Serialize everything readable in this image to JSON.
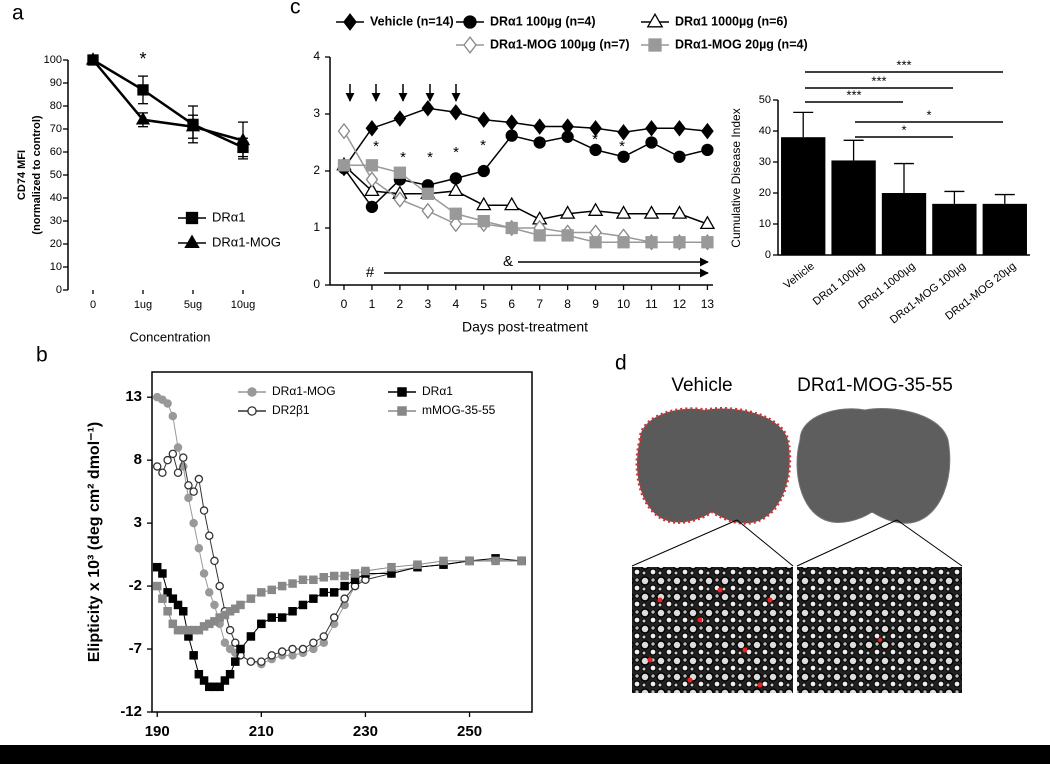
{
  "panel_labels": [
    "a",
    "c",
    "b",
    "d"
  ],
  "chart_data": [
    {
      "type": "line",
      "ylabel": [
        "CD74 MFI",
        "(normalized to control)"
      ],
      "xlabel": "Concentration",
      "categories": [
        "0",
        "1ug",
        "5ug",
        "10ug"
      ],
      "ylim": [
        0,
        100
      ],
      "yticks": [
        0,
        10,
        20,
        30,
        40,
        50,
        60,
        70,
        80,
        90,
        100
      ],
      "series": [
        {
          "name": "DRα1",
          "color": "#000000",
          "marker": "square",
          "filled": true,
          "values": [
            100,
            87,
            72,
            62
          ],
          "errors": [
            1,
            6,
            8,
            4
          ]
        },
        {
          "name": "DRα1-MOG",
          "color": "#000000",
          "marker": "triangle",
          "filled": true,
          "values": [
            100,
            74,
            71,
            65
          ],
          "errors": [
            1,
            3,
            5,
            8
          ]
        }
      ],
      "annotations": [
        "*"
      ]
    },
    {
      "type": "line",
      "xlabel": "Days post-treatment",
      "x": [
        0,
        1,
        2,
        3,
        4,
        5,
        6,
        7,
        8,
        9,
        10,
        11,
        12,
        13
      ],
      "xlim": [
        -0.5,
        13.2
      ],
      "xticks": [
        0,
        1,
        2,
        3,
        4,
        5,
        6,
        7,
        8,
        9,
        10,
        11,
        12,
        13
      ],
      "ylim": [
        0,
        4
      ],
      "yticks": [
        0,
        1,
        2,
        3,
        4
      ],
      "series": [
        {
          "name": "Vehicle (n=14)",
          "color": "#000000",
          "marker": "diamond",
          "filled": true,
          "values": [
            2.05,
            2.75,
            2.92,
            3.1,
            3.03,
            2.9,
            2.85,
            2.78,
            2.78,
            2.75,
            2.68,
            2.75,
            2.75,
            2.7
          ]
        },
        {
          "name": "DRα1 100µg (n=4)",
          "color": "#000000",
          "marker": "circle",
          "filled": true,
          "values": [
            2.05,
            1.37,
            1.85,
            1.75,
            1.87,
            2.0,
            2.62,
            2.5,
            2.6,
            2.37,
            2.25,
            2.5,
            2.25,
            2.37
          ]
        },
        {
          "name": "DRα1 1000µg (n=6)",
          "color": "#000000",
          "marker": "triangle",
          "filled": false,
          "values": [
            2.1,
            1.65,
            1.6,
            1.6,
            1.65,
            1.4,
            1.4,
            1.15,
            1.25,
            1.3,
            1.25,
            1.25,
            1.25,
            1.07
          ]
        },
        {
          "name": "DRα1-MOG 100µg (n=7)",
          "color": "#999999",
          "marker": "diamond",
          "filled": false,
          "values": [
            2.7,
            1.85,
            1.5,
            1.3,
            1.07,
            1.07,
            1.0,
            1.0,
            0.92,
            0.92,
            0.85,
            0.75,
            0.75,
            0.75
          ]
        },
        {
          "name": "DRα1-MOG 20µg (n=4)",
          "color": "#999999",
          "marker": "square",
          "filled": true,
          "values": [
            2.1,
            2.1,
            1.97,
            1.6,
            1.25,
            1.12,
            1.0,
            0.87,
            0.87,
            0.75,
            0.75,
            0.75,
            0.75,
            0.75
          ]
        }
      ],
      "annotations": [
        "*",
        "*",
        "*",
        "*",
        "*",
        "*",
        "*",
        "#",
        "&"
      ]
    },
    {
      "type": "bar",
      "ylabel": "Cumulative Disease Index",
      "categories": [
        "Vehicle",
        "DRα1 100µg",
        "DRα1 1000µg",
        "DRα1-MOG 100µg",
        "DRα1-MOG 20µg"
      ],
      "values": [
        38,
        30.5,
        20,
        16.5,
        16.5
      ],
      "errors": [
        8,
        6.5,
        9.5,
        4,
        3
      ],
      "color": "#000000",
      "ylim": [
        0,
        50
      ],
      "yticks": [
        0,
        10,
        20,
        30,
        40,
        50
      ],
      "annotations": [
        "***",
        "***",
        "***",
        "*",
        "*"
      ]
    },
    {
      "type": "line",
      "ylabel": "Elipticity x 10³ (deg cm² dmol⁻¹)",
      "x": [
        190,
        191,
        192,
        193,
        194,
        195,
        196,
        197,
        198,
        199,
        200,
        201,
        202,
        203,
        204,
        205,
        206,
        208,
        210,
        212,
        214,
        216,
        218,
        220,
        222,
        224,
        226,
        228,
        230,
        235,
        240,
        245,
        250,
        255,
        260
      ],
      "xlim": [
        189,
        262
      ],
      "xticks": [
        190,
        210,
        230,
        250
      ],
      "ylim": [
        -12,
        15
      ],
      "yticks": [
        -12,
        -7,
        -2,
        3,
        8,
        13
      ],
      "series": [
        {
          "name": "DRα1-MOG",
          "color": "#999999",
          "marker": "circle",
          "filled": true,
          "values": [
            13,
            12.8,
            12.5,
            11.5,
            9,
            7.5,
            5,
            3,
            1,
            -1,
            -2.5,
            -3.5,
            -5,
            -6.5,
            -7,
            -7.3,
            -7.5,
            -8,
            -8.2,
            -7.8,
            -7.5,
            -7.5,
            -7.3,
            -7,
            -6.5,
            -5,
            -3.5,
            -2,
            -1.2,
            -0.8,
            -0.5,
            -0.3,
            0,
            0,
            0
          ]
        },
        {
          "name": "DR2β1",
          "color": "#333333",
          "marker": "circle",
          "filled": false,
          "values": [
            7.5,
            7,
            8,
            8.5,
            7,
            8.2,
            6,
            5.5,
            6.5,
            4,
            2,
            0,
            -2,
            -4,
            -5.5,
            -6.5,
            -7.5,
            -8,
            -8,
            -7.5,
            -7.2,
            -7,
            -7,
            -6.5,
            -6,
            -4.5,
            -3,
            -2,
            -1.5,
            -1,
            -0.5,
            -0.3,
            0,
            0,
            0
          ]
        },
        {
          "name": "DRα1",
          "color": "#000000",
          "marker": "square",
          "filled": true,
          "values": [
            -0.5,
            -1,
            -2.5,
            -3,
            -3.5,
            -4,
            -6,
            -7.5,
            -9,
            -9.5,
            -10,
            -10,
            -10,
            -9.5,
            -9,
            -8,
            -7,
            -6,
            -5,
            -4.5,
            -4.5,
            -4,
            -3.5,
            -3,
            -2.5,
            -2.5,
            -2,
            -1.5,
            -1,
            -1,
            -0.5,
            -0.3,
            0,
            0.2,
            0
          ]
        },
        {
          "name": "mMOG-35-55",
          "color": "#888888",
          "marker": "square",
          "filled": true,
          "values": [
            -2,
            -3,
            -4,
            -5,
            -5.5,
            -5.5,
            -5.5,
            -5.5,
            -5.5,
            -5.2,
            -5,
            -4.8,
            -4.5,
            -4.3,
            -4,
            -3.8,
            -3.5,
            -3,
            -2.5,
            -2.3,
            -2,
            -1.8,
            -1.5,
            -1.5,
            -1.3,
            -1.2,
            -1.2,
            -1,
            -0.8,
            -0.5,
            -0.3,
            0,
            0,
            0,
            0
          ]
        }
      ]
    }
  ],
  "images": {
    "left_label": "Vehicle",
    "right_label": "DRα1-MOG-35-55"
  }
}
